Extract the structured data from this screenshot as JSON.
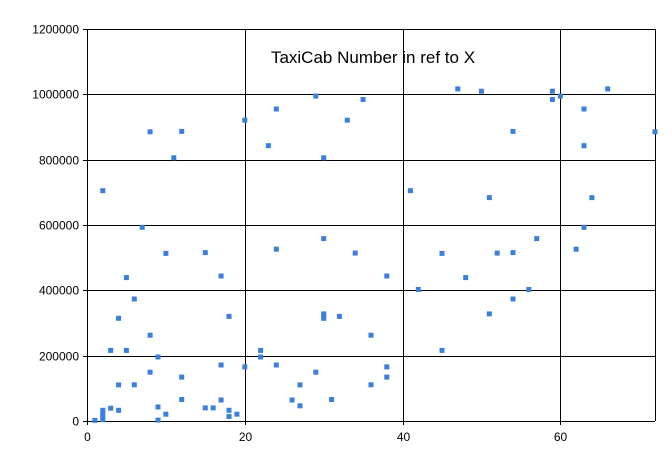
{
  "chart_data": {
    "type": "scatter",
    "title": "TaxiCab Number in ref to X",
    "xlabel": "",
    "ylabel": "",
    "xlim": [
      0,
      72
    ],
    "ylim": [
      0,
      1200000
    ],
    "x_ticks": [
      0,
      20,
      40,
      60
    ],
    "y_ticks": [
      0,
      200000,
      400000,
      600000,
      800000,
      1000000,
      1200000
    ],
    "x_tick_labels": [
      "0",
      "20",
      "40",
      "60"
    ],
    "y_tick_labels": [
      "0",
      "200000",
      "400000",
      "600000",
      "800000",
      "1000000",
      "1200000"
    ],
    "grid": true,
    "marker": "square",
    "marker_color": "#3a7fdc",
    "series": [
      {
        "points": [
          [
            1,
            1729
          ],
          [
            2,
            4104
          ],
          [
            2,
            13832
          ],
          [
            2,
            20683
          ],
          [
            2,
            32832
          ],
          [
            2,
            704977
          ],
          [
            3,
            39312
          ],
          [
            3,
            216027
          ],
          [
            4,
            32760
          ],
          [
            4,
            110656
          ],
          [
            4,
            314496
          ],
          [
            5,
            216125
          ],
          [
            5,
            439101
          ],
          [
            6,
            110808
          ],
          [
            6,
            373464
          ],
          [
            7,
            593047
          ],
          [
            8,
            149389
          ],
          [
            8,
            262656
          ],
          [
            8,
            885248
          ],
          [
            9,
            2728
          ],
          [
            9,
            42875
          ],
          [
            9,
            195841
          ],
          [
            10,
            20683
          ],
          [
            10,
            513000
          ],
          [
            11,
            805688
          ],
          [
            12,
            65728
          ],
          [
            12,
            134379
          ],
          [
            12,
            886464
          ],
          [
            15,
            40033
          ],
          [
            15,
            515375
          ],
          [
            16,
            40040
          ],
          [
            17,
            64232
          ],
          [
            17,
            171288
          ],
          [
            17,
            443889
          ],
          [
            18,
            13832
          ],
          [
            18,
            32832
          ],
          [
            18,
            320264
          ],
          [
            19,
            20683
          ],
          [
            20,
            165464
          ],
          [
            20,
            920673
          ],
          [
            22,
            195841
          ],
          [
            22,
            216027
          ],
          [
            23,
            842751
          ],
          [
            24,
            171288
          ],
          [
            24,
            525824
          ],
          [
            24,
            955016
          ],
          [
            26,
            64232
          ],
          [
            27,
            46683
          ],
          [
            27,
            110656
          ],
          [
            29,
            149389
          ],
          [
            29,
            994688
          ],
          [
            30,
            314496
          ],
          [
            30,
            320264
          ],
          [
            30,
            327763
          ],
          [
            30,
            558441
          ],
          [
            30,
            805688
          ],
          [
            31,
            65728
          ],
          [
            32,
            320264
          ],
          [
            33,
            920673
          ],
          [
            34,
            513856
          ],
          [
            35,
            984067
          ],
          [
            36,
            110808
          ],
          [
            36,
            262656
          ],
          [
            38,
            134379
          ],
          [
            38,
            165464
          ],
          [
            38,
            443889
          ],
          [
            41,
            704977
          ],
          [
            42,
            402597
          ],
          [
            45,
            216125
          ],
          [
            45,
            513000
          ],
          [
            47,
            1016496
          ],
          [
            48,
            439101
          ],
          [
            50,
            1009736
          ],
          [
            51,
            327763
          ],
          [
            51,
            684019
          ],
          [
            52,
            513856
          ],
          [
            54,
            373464
          ],
          [
            54,
            515375
          ],
          [
            54,
            886464
          ],
          [
            56,
            402597
          ],
          [
            57,
            558441
          ],
          [
            59,
            984067
          ],
          [
            59,
            1009736
          ],
          [
            60,
            994688
          ],
          [
            62,
            525824
          ],
          [
            63,
            593047
          ],
          [
            63,
            842751
          ],
          [
            63,
            955016
          ],
          [
            64,
            684019
          ],
          [
            66,
            1016496
          ],
          [
            72,
            885248
          ]
        ]
      }
    ]
  }
}
